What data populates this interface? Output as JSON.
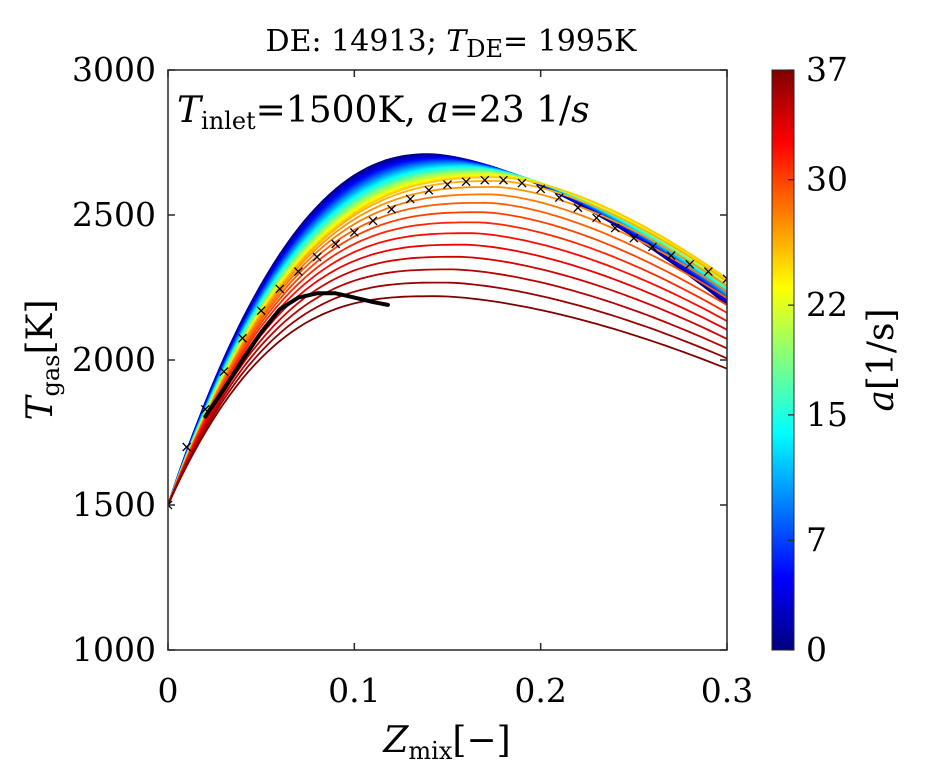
{
  "chart_data": {
    "type": "line",
    "title": "DE: 14913; T_DE= 1995K",
    "title_parts": {
      "prefix": "DE: 14913; ",
      "var": "T",
      "sub": "DE",
      "suffix": "= 1995K"
    },
    "xlabel": {
      "var": "Z",
      "sub": "mix",
      "unit": "[−]"
    },
    "ylabel": {
      "var": "T",
      "sub": "gas",
      "unit": "[K]"
    },
    "annotation": {
      "var": "T",
      "sub": "inlet",
      "mid": "=1500K, ",
      "var2": "a",
      "rest": "=23 1/",
      "var3": "s"
    },
    "xlim": [
      0,
      0.3
    ],
    "ylim": [
      1000,
      3000
    ],
    "x_ticks": [
      0,
      0.1,
      0.2,
      0.3
    ],
    "x_tick_labels": [
      "0",
      "0.1",
      "0.2",
      "0.3"
    ],
    "y_ticks": [
      1000,
      1500,
      2000,
      2500,
      3000
    ],
    "y_tick_labels": [
      "1000",
      "1500",
      "2000",
      "2500",
      "3000"
    ],
    "grid": false,
    "colorbar": {
      "label": {
        "var": "a",
        "unit": "[1/s]"
      },
      "range": [
        0,
        37
      ],
      "ticks": [
        0,
        7,
        15,
        22,
        30,
        37
      ],
      "tick_labels": [
        "0",
        "7",
        "15",
        "22",
        "30",
        "37"
      ],
      "colormap": "jet"
    },
    "flamelet_family": {
      "count": 38,
      "strain_rate_range": [
        0,
        37
      ],
      "low_strain_curve": {
        "x": [
          0,
          0.02,
          0.05,
          0.08,
          0.1,
          0.12,
          0.14,
          0.16,
          0.18,
          0.2,
          0.22,
          0.25,
          0.3
        ],
        "y": [
          1500,
          1990,
          2350,
          2580,
          2665,
          2700,
          2710,
          2690,
          2650,
          2580,
          2500,
          2380,
          2190
        ]
      },
      "peak_T": {
        "a_0": 2710,
        "a_25": 2630,
        "a_37": 2220
      },
      "peak_Z": {
        "a_0": 0.14,
        "a_37": 0.145
      },
      "end_T_at_Z_0_3": {
        "a_0": 2190,
        "a_25": 2280,
        "a_37": 1970
      }
    },
    "series": [
      {
        "name": "a = 23 1/s",
        "marker": "x",
        "color": "#000000",
        "x": [
          0,
          0.01,
          0.02,
          0.03,
          0.04,
          0.05,
          0.06,
          0.07,
          0.08,
          0.09,
          0.1,
          0.11,
          0.12,
          0.13,
          0.14,
          0.15,
          0.16,
          0.17,
          0.18,
          0.19,
          0.2,
          0.21,
          0.22,
          0.23,
          0.24,
          0.25,
          0.26,
          0.27,
          0.28,
          0.29,
          0.3
        ],
        "y": [
          1500,
          1700,
          1830,
          1960,
          2075,
          2170,
          2245,
          2305,
          2355,
          2400,
          2440,
          2480,
          2520,
          2555,
          2585,
          2605,
          2615,
          2620,
          2620,
          2610,
          2590,
          2560,
          2525,
          2490,
          2455,
          2420,
          2390,
          2360,
          2330,
          2305,
          2280
        ]
      },
      {
        "name": "DE",
        "marker": "none",
        "color": "#000000",
        "x": [
          0.02,
          0.03,
          0.04,
          0.05,
          0.06,
          0.07,
          0.08,
          0.09,
          0.1,
          0.11,
          0.118
        ],
        "y": [
          1805,
          1900,
          2000,
          2095,
          2175,
          2215,
          2230,
          2230,
          2215,
          2200,
          2190
        ]
      }
    ]
  }
}
